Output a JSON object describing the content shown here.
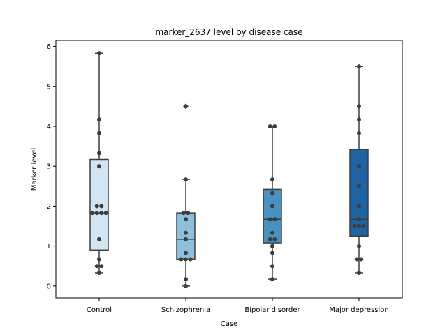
{
  "chart_data": {
    "type": "box",
    "title": "marker_2637 level by disease case",
    "xlabel": "Case",
    "ylabel": "Marker level",
    "ylim": [
      -0.3,
      6.15
    ],
    "yticks": [
      0,
      1,
      2,
      3,
      4,
      5,
      6
    ],
    "grid": false,
    "categories": [
      "Control",
      "Schizophrenia",
      "Bipolar disorder",
      "Major depression"
    ],
    "colors": [
      "#d3e4f3",
      "#8dbfdd",
      "#4a91c3",
      "#1e64a5"
    ],
    "boxes": [
      {
        "whisker_low": 0.33,
        "q1": 0.9,
        "median": 1.83,
        "q3": 3.17,
        "whisker_high": 5.83,
        "outliers": []
      },
      {
        "whisker_low": 0.0,
        "q1": 0.67,
        "median": 1.17,
        "q3": 1.83,
        "whisker_high": 2.67,
        "outliers": [
          4.5
        ]
      },
      {
        "whisker_low": 0.17,
        "q1": 1.08,
        "median": 1.67,
        "q3": 2.42,
        "whisker_high": 4.0,
        "outliers": []
      },
      {
        "whisker_low": 0.33,
        "q1": 1.25,
        "median": 1.67,
        "q3": 3.42,
        "whisker_high": 5.5,
        "outliers": []
      }
    ],
    "points": [
      [
        0.33,
        0.5,
        0.5,
        0.67,
        1.17,
        1.83,
        1.83,
        1.83,
        1.83,
        2.0,
        2.0,
        3.0,
        3.33,
        3.83,
        4.17,
        5.83
      ],
      [
        0.0,
        0.17,
        0.67,
        0.67,
        0.67,
        0.83,
        1.17,
        1.33,
        1.67,
        1.83,
        1.83,
        2.67,
        4.5
      ],
      [
        0.17,
        0.5,
        0.83,
        1.0,
        1.17,
        1.17,
        1.33,
        1.67,
        1.67,
        2.0,
        2.33,
        2.67,
        4.0,
        4.0
      ],
      [
        0.33,
        0.67,
        0.67,
        1.0,
        1.5,
        1.5,
        1.5,
        1.67,
        2.0,
        2.5,
        3.0,
        3.83,
        4.17,
        4.5,
        5.5
      ]
    ]
  }
}
